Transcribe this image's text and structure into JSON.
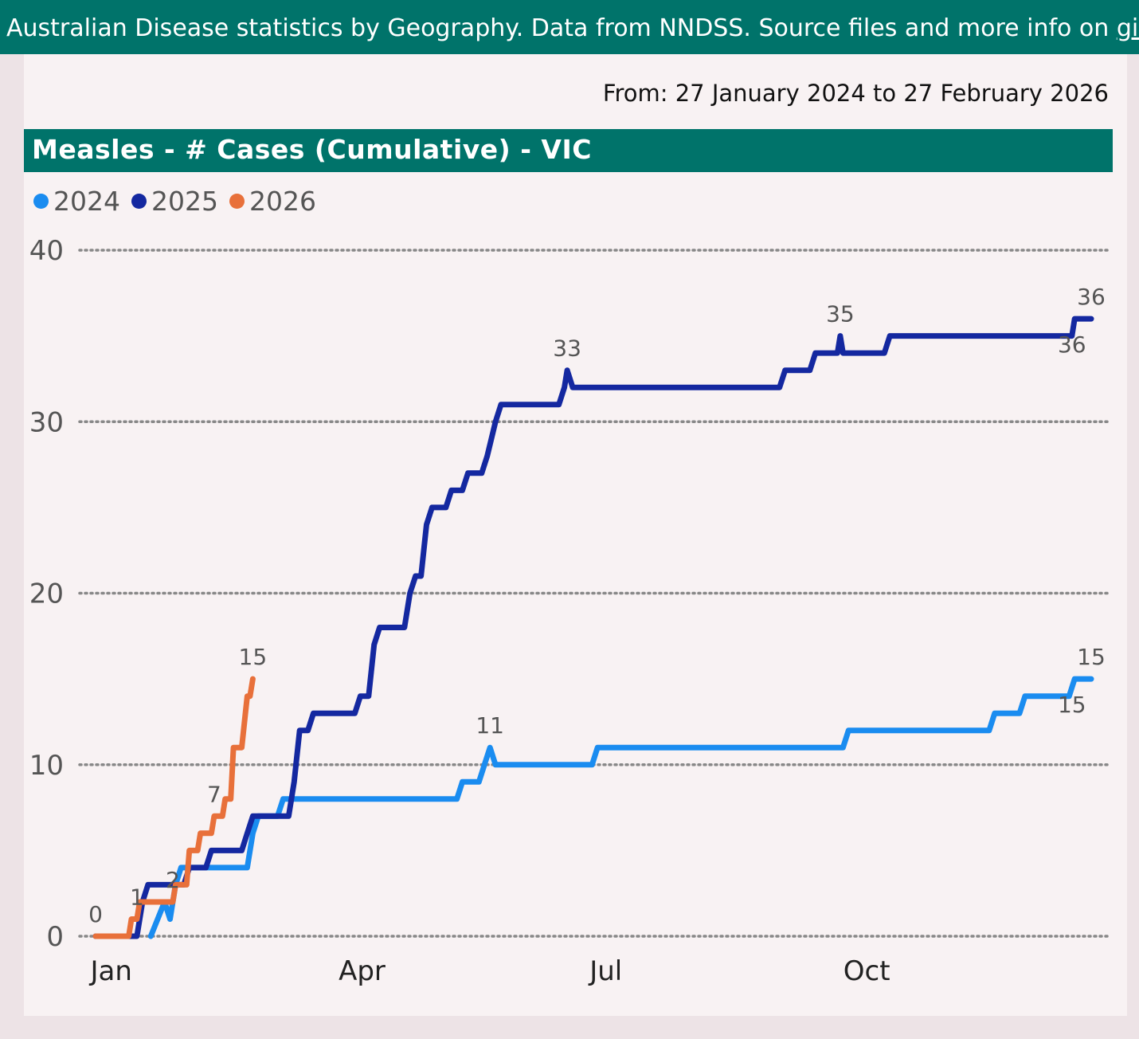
{
  "banner": {
    "text_before": "Australian Disease statistics by Geography. Data from NNDSS. Source files and more info on ",
    "link_text": "github",
    "text_after": "."
  },
  "date_range": "From: 27 January 2024 to 27 February 2026",
  "colors": {
    "banner_bg": "#00736a",
    "series_2024": "#1a8cf0",
    "series_2025": "#1428a0",
    "series_2026": "#e8703a"
  },
  "chart_data": {
    "type": "line",
    "title": "Measles - # Cases (Cumulative) - VIC",
    "xlabel": "",
    "ylabel": "",
    "ylim": [
      0,
      40
    ],
    "yticks": [
      "0",
      "10",
      "20",
      "30",
      "40"
    ],
    "xticks": [
      {
        "label": "Jan",
        "day": 1
      },
      {
        "label": "Apr",
        "day": 91
      },
      {
        "label": "Jul",
        "day": 182
      },
      {
        "label": "Oct",
        "day": 274
      }
    ],
    "x_unit": "day of year",
    "grid": true,
    "legend_position": "top-left",
    "series": [
      {
        "name": "2024",
        "color": "#1a8cf0",
        "points": [
          [
            20,
            0
          ],
          [
            25,
            2
          ],
          [
            27,
            1
          ],
          [
            29,
            3
          ],
          [
            31,
            4
          ],
          [
            55,
            4
          ],
          [
            57,
            6
          ],
          [
            59,
            7
          ],
          [
            66,
            7
          ],
          [
            68,
            8
          ],
          [
            131,
            8
          ],
          [
            133,
            9
          ],
          [
            139,
            9
          ],
          [
            141,
            10
          ],
          [
            143,
            11
          ],
          [
            145,
            10
          ],
          [
            180,
            10
          ],
          [
            182,
            11
          ],
          [
            271,
            11
          ],
          [
            273,
            12
          ],
          [
            324,
            12
          ],
          [
            326,
            13
          ],
          [
            335,
            13
          ],
          [
            337,
            14
          ],
          [
            353,
            14
          ],
          [
            355,
            15
          ],
          [
            361,
            15
          ]
        ],
        "labels": [
          {
            "day": 143,
            "value": 11,
            "text": "11",
            "pos": "above"
          },
          {
            "day": 361,
            "value": 15,
            "text": "15",
            "pos": "above"
          },
          {
            "day": 354,
            "value": 15,
            "text": "15",
            "pos": "below"
          }
        ]
      },
      {
        "name": "2025",
        "color": "#1428a0",
        "points": [
          [
            0,
            0
          ],
          [
            15,
            0
          ],
          [
            17,
            2
          ],
          [
            19,
            3
          ],
          [
            32,
            3
          ],
          [
            34,
            4
          ],
          [
            40,
            4
          ],
          [
            42,
            5
          ],
          [
            53,
            5
          ],
          [
            55,
            6
          ],
          [
            57,
            7
          ],
          [
            70,
            7
          ],
          [
            72,
            9
          ],
          [
            74,
            12
          ],
          [
            77,
            12
          ],
          [
            79,
            13
          ],
          [
            94,
            13
          ],
          [
            96,
            14
          ],
          [
            99,
            14
          ],
          [
            101,
            17
          ],
          [
            103,
            18
          ],
          [
            112,
            18
          ],
          [
            114,
            20
          ],
          [
            116,
            21
          ],
          [
            118,
            21
          ],
          [
            120,
            24
          ],
          [
            122,
            25
          ],
          [
            127,
            25
          ],
          [
            129,
            26
          ],
          [
            133,
            26
          ],
          [
            135,
            27
          ],
          [
            140,
            27
          ],
          [
            142,
            28
          ],
          [
            145,
            30
          ],
          [
            147,
            31
          ],
          [
            168,
            31
          ],
          [
            170,
            32
          ],
          [
            171,
            33
          ],
          [
            173,
            32
          ],
          [
            248,
            32
          ],
          [
            250,
            33
          ],
          [
            259,
            33
          ],
          [
            261,
            34
          ],
          [
            269,
            34
          ],
          [
            270,
            35
          ],
          [
            271,
            34
          ],
          [
            286,
            34
          ],
          [
            288,
            35
          ],
          [
            354,
            35
          ],
          [
            355,
            36
          ],
          [
            361,
            36
          ]
        ],
        "labels": [
          {
            "day": 0,
            "value": 0,
            "text": "0",
            "pos": "above"
          },
          {
            "day": 171,
            "value": 33,
            "text": "33",
            "pos": "above"
          },
          {
            "day": 270,
            "value": 35,
            "text": "35",
            "pos": "above"
          },
          {
            "day": 361,
            "value": 36,
            "text": "36",
            "pos": "above"
          },
          {
            "day": 354,
            "value": 36,
            "text": "36",
            "pos": "below"
          }
        ]
      },
      {
        "name": "2026",
        "color": "#e8703a",
        "points": [
          [
            0,
            0
          ],
          [
            12,
            0
          ],
          [
            13,
            1
          ],
          [
            15,
            1
          ],
          [
            16,
            2
          ],
          [
            28,
            2
          ],
          [
            29,
            3
          ],
          [
            33,
            3
          ],
          [
            34,
            5
          ],
          [
            37,
            5
          ],
          [
            38,
            6
          ],
          [
            42,
            6
          ],
          [
            43,
            7
          ],
          [
            46,
            7
          ],
          [
            47,
            8
          ],
          [
            49,
            8
          ],
          [
            50,
            11
          ],
          [
            53,
            11
          ],
          [
            55,
            14
          ],
          [
            56,
            14
          ],
          [
            57,
            15
          ]
        ],
        "labels": [
          {
            "day": 15,
            "value": 1,
            "text": "1",
            "pos": "above"
          },
          {
            "day": 28,
            "value": 2,
            "text": "2",
            "pos": "above"
          },
          {
            "day": 43,
            "value": 7,
            "text": "7",
            "pos": "above"
          },
          {
            "day": 57,
            "value": 15,
            "text": "15",
            "pos": "above"
          }
        ]
      }
    ]
  }
}
